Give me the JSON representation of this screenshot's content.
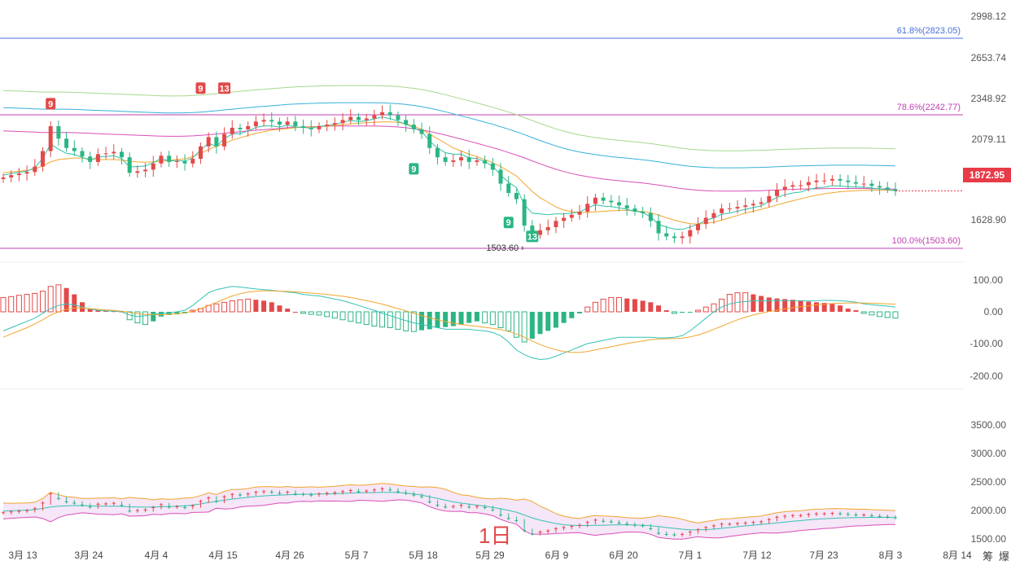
{
  "chart_data": [
    {
      "type": "candlestick",
      "panel": "price",
      "y_ticks": [
        "2998.12",
        "2653.74",
        "2348.92",
        "2079.11",
        "1628.90"
      ],
      "ylim": [
        1500,
        3000
      ],
      "last_price": "1872.95",
      "low_marker": "1503.60",
      "fib_levels": [
        {
          "label": "61.8%(2823.05)",
          "value": 2823.05,
          "color": "#4a6fd8"
        },
        {
          "label": "78.6%(2242.77)",
          "value": 2242.77,
          "color": "#c23fb3"
        },
        {
          "label": "100.0%(1503.60)",
          "value": 1503.6,
          "color": "#c23fb3"
        }
      ],
      "td_markers": [
        {
          "label": "9",
          "x_index": 6,
          "value": 2430,
          "color": "#e34949"
        },
        {
          "label": "9",
          "x_index": 25,
          "value": 2530,
          "color": "#e34949"
        },
        {
          "label": "13",
          "x_index": 28,
          "value": 2530,
          "color": "#e34949"
        },
        {
          "label": "9",
          "x_index": 52,
          "value": 2010,
          "color": "#2bb583"
        },
        {
          "label": "9",
          "x_index": 64,
          "value": 1665,
          "color": "#2bb583"
        },
        {
          "label": "13",
          "x_index": 67,
          "value": 1575,
          "color": "#2bb583"
        }
      ],
      "closes": [
        1960,
        1975,
        1985,
        1995,
        2030,
        2130,
        2290,
        2210,
        2150,
        2130,
        2095,
        2060,
        2110,
        2115,
        2125,
        2090,
        1990,
        2000,
        2010,
        2050,
        2100,
        2060,
        2065,
        2050,
        2080,
        2160,
        2220,
        2160,
        2240,
        2280,
        2270,
        2290,
        2320,
        2330,
        2320,
        2300,
        2320,
        2290,
        2280,
        2270,
        2290,
        2300,
        2310,
        2330,
        2350,
        2330,
        2340,
        2360,
        2380,
        2360,
        2330,
        2300,
        2270,
        2240,
        2150,
        2090,
        2060,
        2070,
        2090,
        2060,
        2070,
        2050,
        2010,
        1920,
        1860,
        1820,
        1650,
        1590,
        1620,
        1640,
        1680,
        1700,
        1720,
        1740,
        1790,
        1830,
        1810,
        1800,
        1780,
        1760,
        1740,
        1730,
        1680,
        1600,
        1580,
        1570,
        1580,
        1620,
        1660,
        1700,
        1730,
        1760,
        1760,
        1770,
        1780,
        1790,
        1800,
        1840,
        1880,
        1900,
        1910,
        1910,
        1930,
        1940,
        1940,
        1950,
        1940,
        1930,
        1920,
        1920,
        1905,
        1895,
        1885,
        1873
      ],
      "ma_fast": [
        1990,
        1995,
        2000,
        2005,
        2015,
        2035,
        2060,
        2075,
        2080,
        2085,
        2085,
        2080,
        2075,
        2075,
        2075,
        2072,
        2065,
        2060,
        2058,
        2060,
        2065,
        2070,
        2075,
        2080,
        2095,
        2115,
        2140,
        2160,
        2180,
        2200,
        2215,
        2230,
        2245,
        2255,
        2265,
        2270,
        2275,
        2280,
        2285,
        2285,
        2288,
        2290,
        2295,
        2300,
        2305,
        2310,
        2312,
        2315,
        2318,
        2318,
        2315,
        2305,
        2290,
        2270,
        2240,
        2210,
        2180,
        2150,
        2130,
        2110,
        2095,
        2075,
        2055,
        2030,
        2000,
        1970,
        1920,
        1870,
        1830,
        1800,
        1770,
        1750,
        1740,
        1735,
        1735,
        1738,
        1742,
        1745,
        1748,
        1748,
        1745,
        1740,
        1732,
        1718,
        1700,
        1685,
        1672,
        1662,
        1660,
        1665,
        1672,
        1685,
        1700,
        1715,
        1730,
        1742,
        1755,
        1768,
        1783,
        1797,
        1810,
        1822,
        1835,
        1846,
        1855,
        1862,
        1868,
        1872,
        1875,
        1877,
        1878,
        1878,
        1878,
        1876
      ],
      "ma_slow": [
        2260,
        2258,
        2256,
        2254,
        2252,
        2250,
        2250,
        2250,
        2250,
        2248,
        2246,
        2244,
        2242,
        2240,
        2238,
        2236,
        2234,
        2232,
        2230,
        2228,
        2226,
        2225,
        2225,
        2226,
        2228,
        2231,
        2235,
        2240,
        2245,
        2250,
        2255,
        2260,
        2264,
        2268,
        2272,
        2276,
        2280,
        2283,
        2285,
        2287,
        2289,
        2290,
        2291,
        2292,
        2292,
        2292,
        2292,
        2291,
        2290,
        2288,
        2285,
        2280,
        2274,
        2266,
        2256,
        2245,
        2233,
        2220,
        2207,
        2194,
        2180,
        2166,
        2152,
        2137,
        2121,
        2104,
        2086,
        2067,
        2048,
        2030,
        2013,
        1998,
        1985,
        1974,
        1965,
        1957,
        1950,
        1944,
        1939,
        1934,
        1929,
        1924,
        1918,
        1911,
        1903,
        1895,
        1888,
        1882,
        1878,
        1875,
        1873,
        1872,
        1872,
        1872,
        1873,
        1874,
        1875,
        1877,
        1879,
        1881,
        1883,
        1885,
        1886,
        1887,
        1888,
        1889,
        1889,
        1889,
        1889,
        1889,
        1888,
        1887,
        1886,
        1885
      ]
    },
    {
      "type": "bar",
      "panel": "macd",
      "y_ticks": [
        "100.00",
        "0.00",
        "-100.00",
        "-200.00"
      ],
      "ylim": [
        -200,
        100
      ],
      "histogram": [
        45,
        48,
        52,
        55,
        58,
        65,
        80,
        85,
        75,
        55,
        30,
        10,
        5,
        3,
        2,
        1,
        -25,
        -35,
        -40,
        -30,
        -15,
        -10,
        -8,
        -5,
        5,
        10,
        20,
        25,
        30,
        35,
        38,
        40,
        38,
        35,
        30,
        20,
        10,
        0,
        -5,
        -8,
        -10,
        -15,
        -20,
        -25,
        -30,
        -35,
        -40,
        -45,
        -48,
        -50,
        -55,
        -60,
        -62,
        -58,
        -55,
        -50,
        -48,
        -45,
        -40,
        -35,
        -30,
        -35,
        -40,
        -50,
        -60,
        -80,
        -95,
        -85,
        -70,
        -60,
        -50,
        -35,
        -20,
        -5,
        15,
        30,
        40,
        45,
        45,
        42,
        40,
        35,
        30,
        20,
        5,
        -5,
        -3,
        -2,
        5,
        15,
        25,
        40,
        55,
        60,
        60,
        55,
        50,
        45,
        42,
        40,
        38,
        35,
        32,
        30,
        28,
        25,
        20,
        10,
        5,
        -5,
        -10,
        -15,
        -18,
        -20
      ],
      "dif": [
        -60,
        -50,
        -40,
        -30,
        -20,
        -5,
        10,
        20,
        25,
        22,
        15,
        8,
        5,
        3,
        2,
        0,
        -10,
        -15,
        -12,
        -8,
        -5,
        -3,
        0,
        5,
        20,
        40,
        60,
        70,
        75,
        80,
        78,
        75,
        72,
        70,
        68,
        65,
        62,
        60,
        55,
        52,
        50,
        45,
        40,
        35,
        28,
        20,
        12,
        5,
        -5,
        -12,
        -20,
        -28,
        -35,
        -40,
        -45,
        -50,
        -55,
        -55,
        -55,
        -55,
        -58,
        -60,
        -65,
        -75,
        -95,
        -120,
        -135,
        -145,
        -150,
        -148,
        -140,
        -130,
        -120,
        -110,
        -100,
        -95,
        -90,
        -85,
        -80,
        -80,
        -80,
        -80,
        -80,
        -82,
        -82,
        -80,
        -75,
        -60,
        -40,
        -20,
        0,
        15,
        25,
        30,
        32,
        35,
        35,
        35,
        36,
        35,
        35,
        35,
        34,
        35,
        36,
        36,
        35,
        33,
        30,
        25,
        22,
        20,
        18,
        15
      ],
      "dea": [
        -80,
        -70,
        -60,
        -50,
        -38,
        -25,
        -10,
        0,
        8,
        12,
        12,
        10,
        8,
        6,
        4,
        2,
        -2,
        -6,
        -8,
        -9,
        -9,
        -8,
        -6,
        -3,
        2,
        10,
        20,
        30,
        40,
        50,
        57,
        62,
        65,
        66,
        66,
        65,
        64,
        63,
        61,
        59,
        57,
        55,
        52,
        49,
        45,
        40,
        35,
        30,
        24,
        17,
        10,
        3,
        -5,
        -12,
        -19,
        -25,
        -31,
        -36,
        -40,
        -43,
        -46,
        -49,
        -52,
        -56,
        -62,
        -70,
        -80,
        -92,
        -103,
        -112,
        -120,
        -125,
        -128,
        -128,
        -125,
        -120,
        -115,
        -110,
        -105,
        -100,
        -96,
        -92,
        -88,
        -86,
        -85,
        -84,
        -83,
        -79,
        -73,
        -65,
        -55,
        -45,
        -35,
        -25,
        -17,
        -10,
        -4,
        1,
        5,
        9,
        13,
        16,
        19,
        22,
        24,
        26,
        27,
        28,
        28,
        28,
        27,
        26,
        25,
        24
      ]
    },
    {
      "type": "area",
      "panel": "bollinger",
      "y_ticks": [
        "3500.00",
        "3000.00",
        "2500.00",
        "2000.00",
        "1500.00"
      ],
      "ylim": [
        1500,
        3500
      ],
      "x_ticks": [
        "3月 13",
        "3月 24",
        "4月 4",
        "4月 15",
        "4月 26",
        "5月 7",
        "5月 18",
        "5月 29",
        "6月 9",
        "6月 20",
        "7月 1",
        "7月 12",
        "7月 23",
        "8月 3",
        "8月 14"
      ],
      "period_label": "1日"
    }
  ],
  "buttons": {
    "chip": "筹",
    "boom": "爆"
  }
}
